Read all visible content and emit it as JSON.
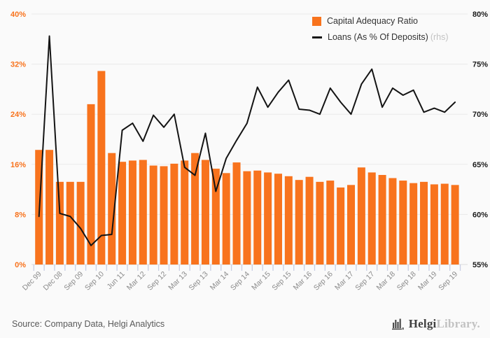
{
  "legend": {
    "bar_label": "Capital Adequacy Ratio",
    "line_label": "Loans (As % Of Deposits)",
    "line_label_suffix": "(rhs)"
  },
  "footer": {
    "source": "Source: Company Data, Helgi Analytics",
    "brand_primary": "Helgi",
    "brand_secondary": "Library",
    "brand_suffix": "."
  },
  "colors": {
    "bar": "#f8731d",
    "line": "#141414",
    "left_axis_text": "#f8731d",
    "right_axis_text": "#1a1a1a",
    "x_label_text": "#8b8b8b",
    "gridline": "#e9e9e9",
    "axis_line": "#dcdcdc",
    "tick": "#c9cfe4",
    "background": "#fafafa"
  },
  "chart_data": {
    "type": "combo",
    "x_tick_labels": [
      "Dec 99",
      "Dec 08",
      "Sep 09",
      "Sep 10",
      "Jun 11",
      "Mar 12",
      "Sep 12",
      "Mar 13",
      "Sep 13",
      "Mar 14",
      "Sep 14",
      "Mar 15",
      "Sep 15",
      "Mar 16",
      "Sep 16",
      "Mar 17",
      "Sep 17",
      "Mar 18",
      "Sep 18",
      "Mar 19",
      "Sep 19"
    ],
    "label_every_nth_bar": 2,
    "left_axis": {
      "min": 0,
      "max": 40,
      "step": 8,
      "ticks": [
        "0%",
        "8%",
        "16%",
        "24%",
        "32%",
        "40%"
      ]
    },
    "right_axis": {
      "min": 55,
      "max": 80,
      "step": 5,
      "ticks": [
        "55%",
        "60%",
        "65%",
        "70%",
        "75%",
        "80%"
      ]
    },
    "grid": true,
    "legend_position": "top-right",
    "series": [
      {
        "name": "Capital Adequacy Ratio",
        "type": "bar",
        "axis": "left",
        "unit": "%",
        "values": [
          18.3,
          18.3,
          13.2,
          13.2,
          13.2,
          25.6,
          30.9,
          17.8,
          16.4,
          16.6,
          16.7,
          15.8,
          15.7,
          16.1,
          16.6,
          17.8,
          16.7,
          15.3,
          14.6,
          16.3,
          14.9,
          15.0,
          14.7,
          14.5,
          14.1,
          13.5,
          14.0,
          13.2,
          13.4,
          12.3,
          12.7,
          15.5,
          14.7,
          14.3,
          13.8,
          13.4,
          13.0,
          13.2,
          12.8,
          12.9,
          12.7
        ]
      },
      {
        "name": "Loans (As % Of Deposits)",
        "type": "line",
        "axis": "right",
        "unit": "%",
        "values": [
          59.8,
          77.8,
          60.1,
          59.8,
          58.6,
          56.9,
          57.9,
          58.0,
          68.4,
          69.1,
          67.3,
          69.9,
          68.7,
          70.0,
          64.7,
          63.9,
          68.1,
          62.3,
          65.6,
          67.4,
          69.1,
          72.7,
          70.7,
          72.2,
          73.4,
          70.5,
          70.4,
          70.0,
          72.6,
          71.2,
          70.0,
          73.0,
          74.5,
          70.7,
          72.6,
          71.9,
          72.4,
          70.2,
          70.6,
          70.2,
          71.2
        ]
      }
    ]
  }
}
